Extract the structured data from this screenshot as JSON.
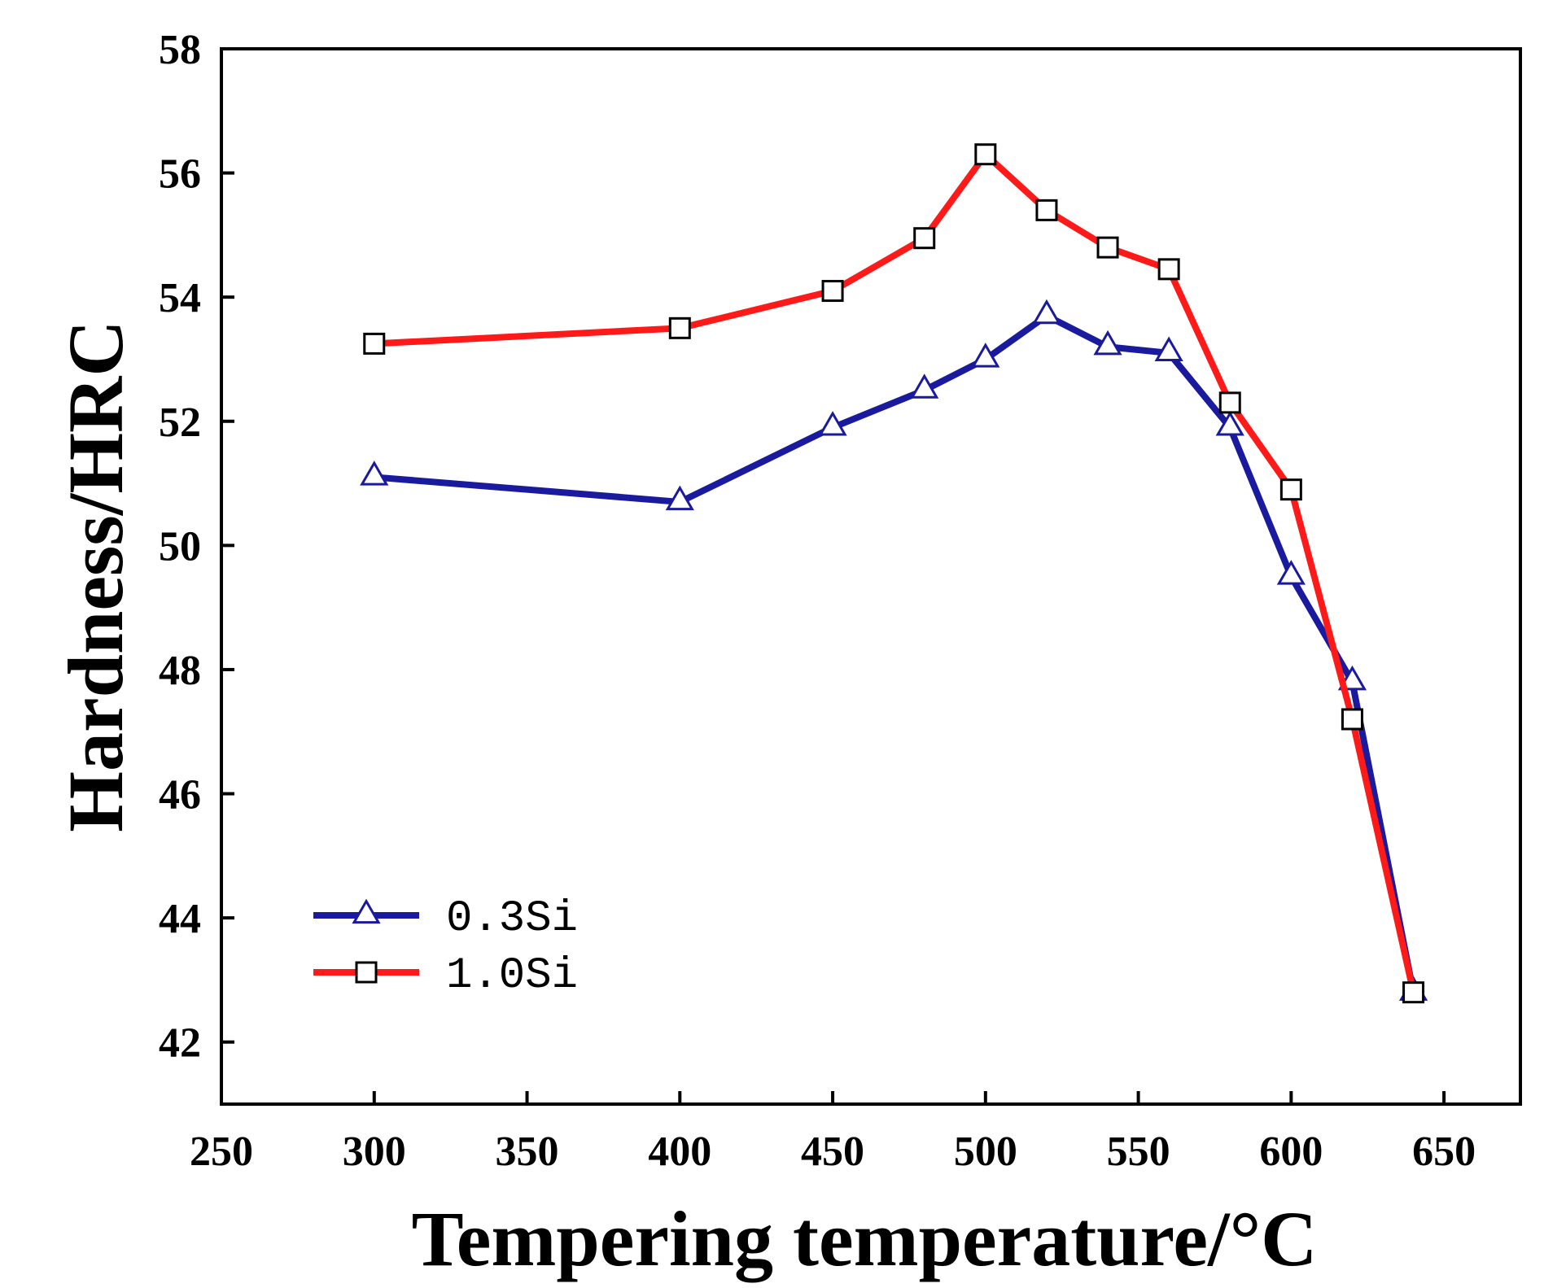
{
  "chart_data": {
    "type": "line",
    "title": "",
    "xlabel": "Tempering temperature/°C",
    "ylabel": "Hardness/HRC",
    "xlim": [
      250,
      675
    ],
    "ylim": [
      41,
      58
    ],
    "xticks": [
      250,
      300,
      350,
      400,
      450,
      500,
      550,
      600,
      650
    ],
    "yticks": [
      42,
      44,
      46,
      48,
      50,
      52,
      54,
      56,
      58
    ],
    "grid": false,
    "legend_position": "bottom-left",
    "series": [
      {
        "name": "0.3Si",
        "color": "#1a1a9e",
        "marker": "triangle",
        "x": [
          300,
          400,
          450,
          480,
          500,
          520,
          540,
          560,
          580,
          600,
          620,
          640
        ],
        "y": [
          51.1,
          50.7,
          51.9,
          52.5,
          53.0,
          53.7,
          53.2,
          53.1,
          51.9,
          49.5,
          47.8,
          42.8
        ]
      },
      {
        "name": "1.0Si",
        "color": "#ff1a1a",
        "marker": "square",
        "x": [
          300,
          400,
          450,
          480,
          500,
          520,
          540,
          560,
          580,
          600,
          620,
          640
        ],
        "y": [
          53.25,
          53.5,
          54.1,
          54.95,
          56.3,
          55.4,
          54.8,
          54.45,
          52.3,
          50.9,
          47.2,
          42.8
        ]
      }
    ]
  }
}
